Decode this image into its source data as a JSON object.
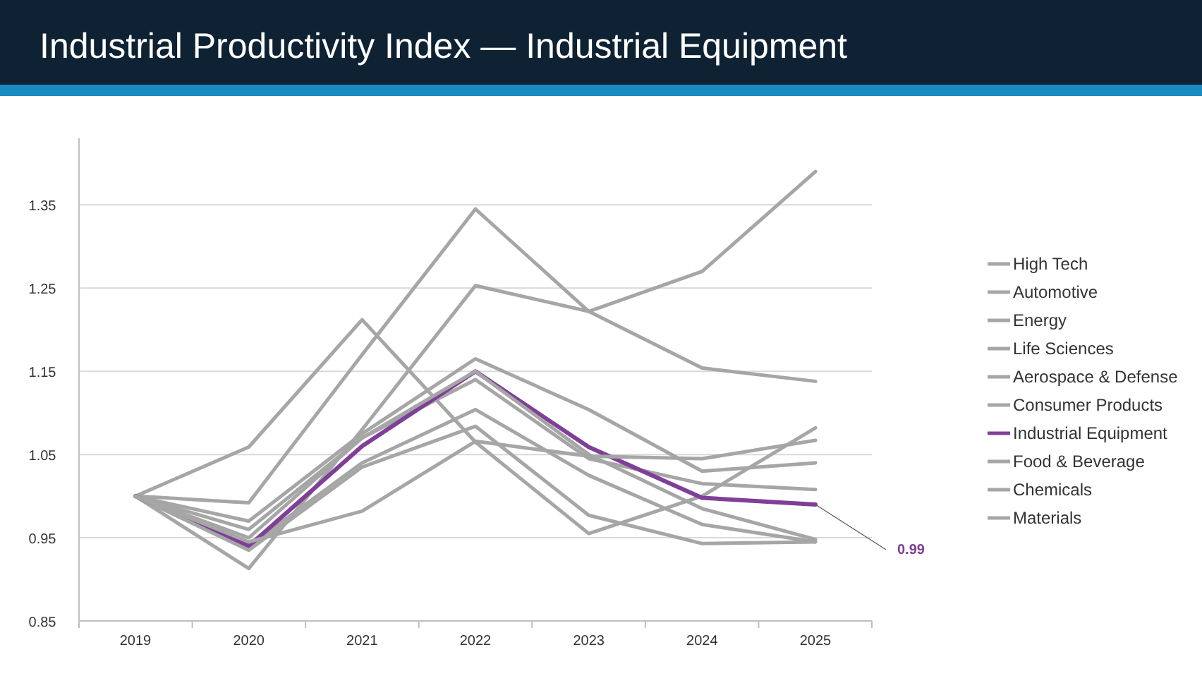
{
  "chart_data": {
    "type": "line",
    "title": "Industrial Productivity Index — Industrial Equipment",
    "categories": [
      "2019",
      "2020",
      "2021",
      "2022",
      "2023",
      "2024",
      "2025"
    ],
    "series": [
      {
        "name": "High Tech",
        "color": "#a6a6a6",
        "values": [
          1,
          0.992,
          1.17,
          1.345,
          1.222,
          1.27,
          1.39
        ]
      },
      {
        "name": "Automotive",
        "color": "#a6a6a6",
        "values": [
          1,
          0.913,
          1.08,
          1.253,
          1.222,
          1.154,
          1.138
        ]
      },
      {
        "name": "Energy",
        "color": "#a6a6a6",
        "values": [
          1,
          1.059,
          1.212,
          1.065,
          0.955,
          1.0,
          1.082
        ]
      },
      {
        "name": "Life Sciences",
        "color": "#a6a6a6",
        "values": [
          1,
          0.97,
          1.075,
          1.165,
          1.104,
          1.03,
          1.04
        ]
      },
      {
        "name": "Aerospace & Defense",
        "color": "#a6a6a6",
        "values": [
          1,
          0.96,
          1.07,
          1.14,
          1.045,
          1.015,
          1.008
        ]
      },
      {
        "name": "Consumer Products",
        "color": "#a6a6a6",
        "values": [
          1,
          0.94,
          1.04,
          1.104,
          1.025,
          0.966,
          0.945
        ]
      },
      {
        "name": "Industrial Equipment",
        "color": "#7f3f98",
        "values": [
          1,
          0.94,
          1.06,
          1.15,
          1.059,
          0.998,
          0.99
        ]
      },
      {
        "name": "Food & Beverage",
        "color": "#a6a6a6",
        "values": [
          1,
          0.935,
          1.035,
          1.084,
          0.977,
          0.943,
          0.945
        ]
      },
      {
        "name": "Chemicals",
        "color": "#a6a6a6",
        "values": [
          1,
          0.945,
          0.982,
          1.066,
          1.048,
          1.045,
          1.067
        ]
      },
      {
        "name": "Materials",
        "color": "#a6a6a6",
        "values": [
          1,
          0.95,
          1.07,
          1.15,
          1.05,
          0.985,
          0.948
        ]
      }
    ],
    "ylim": [
      0.85,
      1.43
    ],
    "yticks": [
      0.85,
      0.95,
      1.05,
      1.15,
      1.25,
      1.35
    ],
    "grid": "y",
    "legend": "right",
    "marker": "none",
    "line_style": "solid",
    "annotations": [
      {
        "text": "0.99",
        "x": "2025",
        "y": 0.99
      }
    ]
  }
}
